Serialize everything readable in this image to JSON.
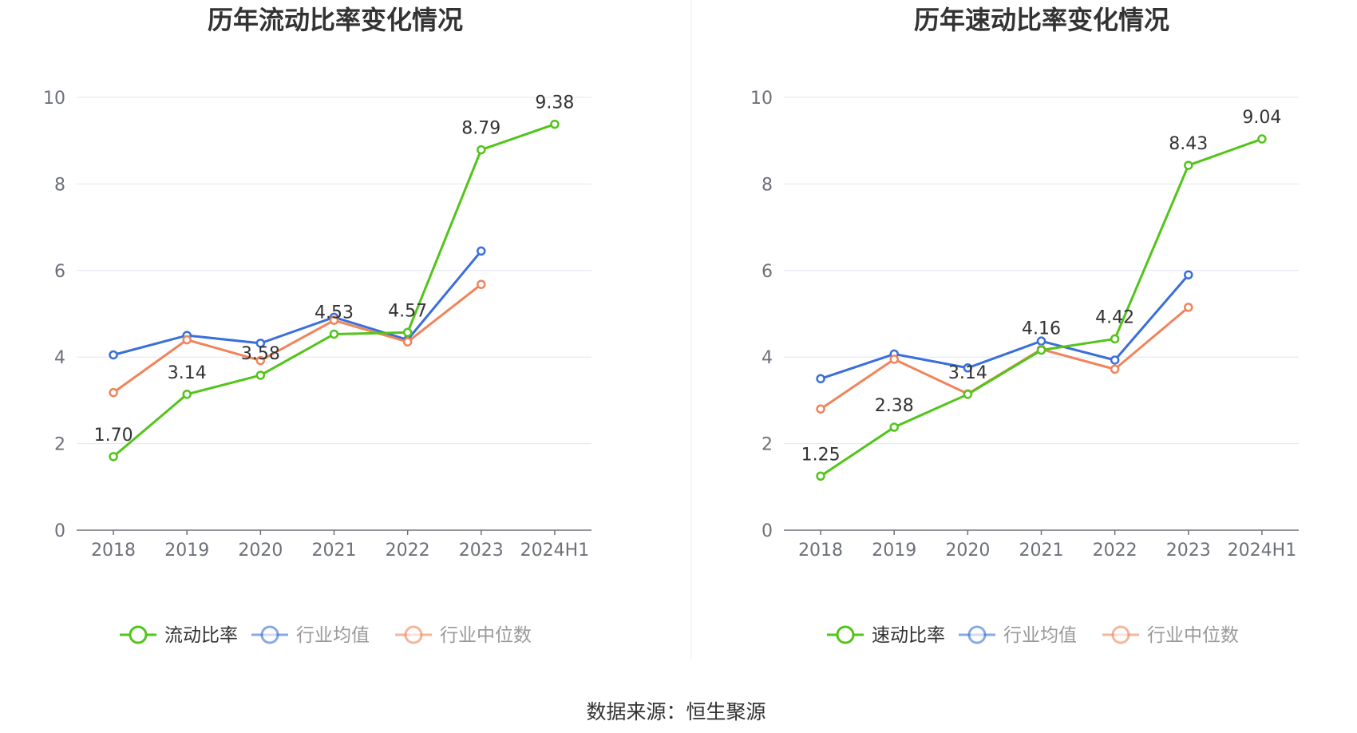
{
  "footer": {
    "source": "数据来源：恒生聚源"
  },
  "chart_data": [
    {
      "type": "line",
      "title": "历年流动比率变化情况",
      "categories": [
        "2018",
        "2019",
        "2020",
        "2021",
        "2022",
        "2023",
        "2024H1"
      ],
      "ylim": [
        0,
        10
      ],
      "yticks": [
        "0",
        "2",
        "4",
        "6",
        "8",
        "10"
      ],
      "grid": true,
      "legend_position": "bottom",
      "series": [
        {
          "name": "流动比率",
          "color": "#52c41a",
          "values": [
            1.7,
            3.14,
            3.58,
            4.53,
            4.57,
            8.79,
            9.38
          ],
          "labels": [
            "1.70",
            "3.14",
            "3.58",
            "4.53",
            "4.57",
            "8.79",
            "9.38"
          ]
        },
        {
          "name": "行业均值",
          "color": "#3a6fd8",
          "values": [
            4.05,
            4.5,
            4.32,
            4.92,
            4.4,
            6.45,
            null
          ]
        },
        {
          "name": "行业中位数",
          "color": "#f0845a",
          "values": [
            3.18,
            4.4,
            3.92,
            4.85,
            4.35,
            5.68,
            null
          ]
        }
      ]
    },
    {
      "type": "line",
      "title": "历年速动比率变化情况",
      "categories": [
        "2018",
        "2019",
        "2020",
        "2021",
        "2022",
        "2023",
        "2024H1"
      ],
      "ylim": [
        0,
        10
      ],
      "yticks": [
        "0",
        "2",
        "4",
        "6",
        "8",
        "10"
      ],
      "grid": true,
      "legend_position": "bottom",
      "series": [
        {
          "name": "速动比率",
          "color": "#52c41a",
          "values": [
            1.25,
            2.38,
            3.14,
            4.16,
            4.42,
            8.43,
            9.04
          ],
          "labels": [
            "1.25",
            "2.38",
            "3.14",
            "4.16",
            "4.42",
            "8.43",
            "9.04"
          ]
        },
        {
          "name": "行业均值",
          "color": "#3a6fd8",
          "values": [
            3.5,
            4.07,
            3.75,
            4.37,
            3.93,
            5.9,
            null
          ]
        },
        {
          "name": "行业中位数",
          "color": "#f0845a",
          "values": [
            2.8,
            3.95,
            3.15,
            4.18,
            3.72,
            5.15,
            null
          ]
        }
      ]
    }
  ]
}
